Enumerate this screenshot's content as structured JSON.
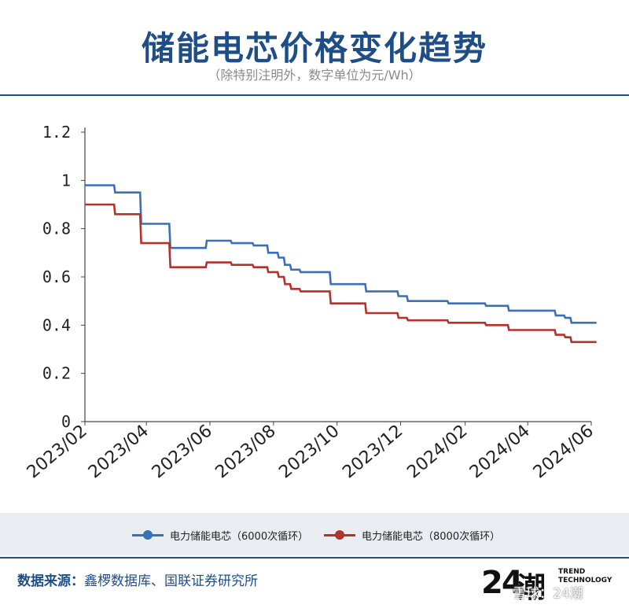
{
  "header": {
    "title": "储能电芯价格变化趋势",
    "subtitle": "（除特别注明外，数字单位为元/Wh）"
  },
  "colors": {
    "accent": "#1f4e86",
    "series_6000": "#3b6fb6",
    "series_8000": "#b1332c"
  },
  "chart_data": {
    "type": "line",
    "title": "储能电芯价格变化趋势",
    "ylabel": "",
    "xlabel": "",
    "ylim": [
      0,
      1.2
    ],
    "xlim": [
      "2023/02",
      "2024/06"
    ],
    "yticks": [
      "0",
      "0.2",
      "0.4",
      "0.6",
      "0.8",
      "1",
      "1.2"
    ],
    "xticks": [
      "2023/02",
      "2023/04",
      "2023/06",
      "2023/08",
      "2023/10",
      "2023/12",
      "2024/02",
      "2024/04",
      "2024/06"
    ],
    "grid": false,
    "legend_position": "bottom",
    "series": [
      {
        "name": "电力储能电芯（6000次循环）",
        "color": "#3b6fb6",
        "points": [
          [
            "2023-02-01",
            0.98
          ],
          [
            "2023-03-01",
            0.98
          ],
          [
            "2023-03-02",
            0.95
          ],
          [
            "2023-03-26",
            0.95
          ],
          [
            "2023-03-27",
            0.82
          ],
          [
            "2023-04-23",
            0.82
          ],
          [
            "2023-04-24",
            0.72
          ],
          [
            "2023-05-28",
            0.72
          ],
          [
            "2023-05-29",
            0.75
          ],
          [
            "2023-06-21",
            0.75
          ],
          [
            "2023-06-22",
            0.74
          ],
          [
            "2023-07-12",
            0.74
          ],
          [
            "2023-07-13",
            0.73
          ],
          [
            "2023-07-26",
            0.73
          ],
          [
            "2023-07-27",
            0.7
          ],
          [
            "2023-08-05",
            0.7
          ],
          [
            "2023-08-06",
            0.68
          ],
          [
            "2023-08-11",
            0.68
          ],
          [
            "2023-08-12",
            0.65
          ],
          [
            "2023-08-17",
            0.65
          ],
          [
            "2023-08-18",
            0.63
          ],
          [
            "2023-08-26",
            0.63
          ],
          [
            "2023-08-27",
            0.62
          ],
          [
            "2023-09-24",
            0.62
          ],
          [
            "2023-09-25",
            0.57
          ],
          [
            "2023-10-28",
            0.57
          ],
          [
            "2023-10-29",
            0.54
          ],
          [
            "2023-11-28",
            0.54
          ],
          [
            "2023-11-29",
            0.52
          ],
          [
            "2023-12-07",
            0.52
          ],
          [
            "2023-12-08",
            0.5
          ],
          [
            "2024-01-15",
            0.5
          ],
          [
            "2024-01-16",
            0.49
          ],
          [
            "2024-02-20",
            0.49
          ],
          [
            "2024-02-21",
            0.48
          ],
          [
            "2024-03-13",
            0.48
          ],
          [
            "2024-03-14",
            0.46
          ],
          [
            "2024-04-27",
            0.46
          ],
          [
            "2024-04-28",
            0.44
          ],
          [
            "2024-05-06",
            0.44
          ],
          [
            "2024-05-07",
            0.43
          ],
          [
            "2024-05-12",
            0.43
          ],
          [
            "2024-05-13",
            0.41
          ],
          [
            "2024-06-06",
            0.41
          ]
        ]
      },
      {
        "name": "电力储能电芯（8000次循环）",
        "color": "#b1332c",
        "points": [
          [
            "2023-02-01",
            0.9
          ],
          [
            "2023-03-01",
            0.9
          ],
          [
            "2023-03-02",
            0.86
          ],
          [
            "2023-03-26",
            0.86
          ],
          [
            "2023-03-27",
            0.74
          ],
          [
            "2023-04-23",
            0.74
          ],
          [
            "2023-04-24",
            0.64
          ],
          [
            "2023-05-28",
            0.64
          ],
          [
            "2023-05-29",
            0.66
          ],
          [
            "2023-06-21",
            0.66
          ],
          [
            "2023-06-22",
            0.65
          ],
          [
            "2023-07-12",
            0.65
          ],
          [
            "2023-07-13",
            0.64
          ],
          [
            "2023-07-26",
            0.64
          ],
          [
            "2023-07-27",
            0.62
          ],
          [
            "2023-08-05",
            0.62
          ],
          [
            "2023-08-06",
            0.6
          ],
          [
            "2023-08-11",
            0.6
          ],
          [
            "2023-08-12",
            0.57
          ],
          [
            "2023-08-17",
            0.57
          ],
          [
            "2023-08-18",
            0.55
          ],
          [
            "2023-08-26",
            0.55
          ],
          [
            "2023-08-27",
            0.54
          ],
          [
            "2023-09-24",
            0.54
          ],
          [
            "2023-09-25",
            0.49
          ],
          [
            "2023-10-28",
            0.49
          ],
          [
            "2023-10-29",
            0.45
          ],
          [
            "2023-11-28",
            0.45
          ],
          [
            "2023-11-29",
            0.43
          ],
          [
            "2023-12-07",
            0.43
          ],
          [
            "2023-12-08",
            0.42
          ],
          [
            "2024-01-15",
            0.42
          ],
          [
            "2024-01-16",
            0.41
          ],
          [
            "2024-02-20",
            0.41
          ],
          [
            "2024-02-21",
            0.4
          ],
          [
            "2024-03-13",
            0.4
          ],
          [
            "2024-03-14",
            0.38
          ],
          [
            "2024-04-27",
            0.38
          ],
          [
            "2024-04-28",
            0.36
          ],
          [
            "2024-05-06",
            0.36
          ],
          [
            "2024-05-07",
            0.35
          ],
          [
            "2024-05-12",
            0.35
          ],
          [
            "2024-05-13",
            0.33
          ],
          [
            "2024-06-06",
            0.33
          ]
        ]
      }
    ]
  },
  "legend": {
    "items": [
      {
        "label": "电力储能电芯（6000次循环）",
        "color": "#3b6fb6"
      },
      {
        "label": "电力储能电芯（8000次循环）",
        "color": "#b1332c"
      }
    ]
  },
  "footer": {
    "source_label": "数据来源：",
    "source_value": "鑫椤数据库、国联证券研究所",
    "logo_number": "24",
    "logo_cn": "潮",
    "logo_en_line1": "TREND",
    "logo_en_line2": "TECHNOLOGY",
    "watermark": "雪球：24潮"
  }
}
